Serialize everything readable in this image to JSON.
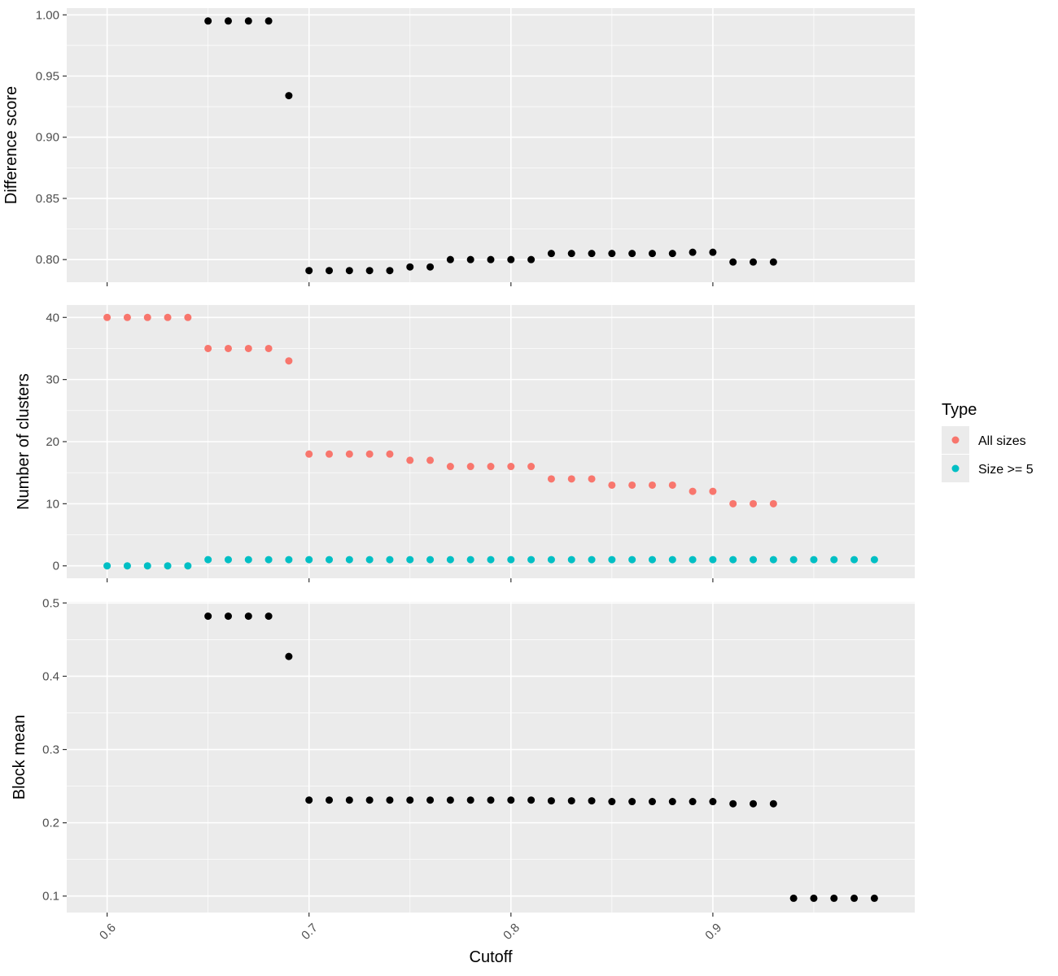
{
  "colors": {
    "panel_bg": "#EBEBEB",
    "grid": "#FFFFFF",
    "point_default": "#000000",
    "all_sizes": "#F8766D",
    "size_ge_5": "#00BFC4",
    "tick_text": "#4D4D4D",
    "tick_mark": "#333333"
  },
  "chart_data": {
    "type": "scatter",
    "xlabel": "Cutoff",
    "x_ticks": [
      "0.6",
      "0.7",
      "0.8",
      "0.9"
    ],
    "xlim": [
      0.58,
      1.0
    ],
    "legend": {
      "title": "Type",
      "position": "right",
      "entries": [
        "All sizes",
        "Size >= 5"
      ]
    },
    "panels": [
      {
        "ylabel": "Difference score",
        "ylim": [
          0.7815,
          1.0055
        ],
        "y_ticks": [
          "0.80",
          "0.85",
          "0.90",
          "0.95",
          "1.00"
        ],
        "y_tick_values": [
          0.8,
          0.85,
          0.9,
          0.95,
          1.0
        ],
        "series": [
          {
            "x": [
              0.65,
              0.66,
              0.67,
              0.68,
              0.69,
              0.7,
              0.71,
              0.72,
              0.73,
              0.74,
              0.75,
              0.76,
              0.77,
              0.78,
              0.79,
              0.8,
              0.81,
              0.82,
              0.83,
              0.84,
              0.85,
              0.86,
              0.87,
              0.88,
              0.89,
              0.9,
              0.91,
              0.92,
              0.93
            ],
            "y": [
              0.995,
              0.995,
              0.995,
              0.995,
              0.934,
              0.791,
              0.791,
              0.791,
              0.791,
              0.791,
              0.794,
              0.794,
              0.8,
              0.8,
              0.8,
              0.8,
              0.8,
              0.805,
              0.805,
              0.805,
              0.805,
              0.805,
              0.805,
              0.805,
              0.806,
              0.806,
              0.798,
              0.798,
              0.798
            ]
          }
        ]
      },
      {
        "ylabel": "Number of clusters",
        "ylim": [
          -2,
          42
        ],
        "y_ticks": [
          "0",
          "10",
          "20",
          "30",
          "40"
        ],
        "y_tick_values": [
          0,
          10,
          20,
          30,
          40
        ],
        "series": [
          {
            "name": "All sizes",
            "x": [
              0.6,
              0.61,
              0.62,
              0.63,
              0.64,
              0.65,
              0.66,
              0.67,
              0.68,
              0.69,
              0.7,
              0.71,
              0.72,
              0.73,
              0.74,
              0.75,
              0.76,
              0.77,
              0.78,
              0.79,
              0.8,
              0.81,
              0.82,
              0.83,
              0.84,
              0.85,
              0.86,
              0.87,
              0.88,
              0.89,
              0.9,
              0.91,
              0.92,
              0.93
            ],
            "y": [
              40,
              40,
              40,
              40,
              40,
              35,
              35,
              35,
              35,
              33,
              18,
              18,
              18,
              18,
              18,
              17,
              17,
              16,
              16,
              16,
              16,
              16,
              14,
              14,
              14,
              13,
              13,
              13,
              13,
              12,
              12,
              10,
              10,
              10
            ]
          },
          {
            "name": "Size >= 5",
            "x": [
              0.6,
              0.61,
              0.62,
              0.63,
              0.64,
              0.65,
              0.66,
              0.67,
              0.68,
              0.69,
              0.7,
              0.71,
              0.72,
              0.73,
              0.74,
              0.75,
              0.76,
              0.77,
              0.78,
              0.79,
              0.8,
              0.81,
              0.82,
              0.83,
              0.84,
              0.85,
              0.86,
              0.87,
              0.88,
              0.89,
              0.9,
              0.91,
              0.92,
              0.93,
              0.94,
              0.95,
              0.96,
              0.97,
              0.98
            ],
            "y": [
              0,
              0,
              0,
              0,
              0,
              1,
              1,
              1,
              1,
              1,
              1,
              1,
              1,
              1,
              1,
              1,
              1,
              1,
              1,
              1,
              1,
              1,
              1,
              1,
              1,
              1,
              1,
              1,
              1,
              1,
              1,
              1,
              1,
              1,
              1,
              1,
              1,
              1,
              1
            ]
          }
        ]
      },
      {
        "ylabel": "Block mean",
        "ylim": [
          0.0775,
          0.5015
        ],
        "y_ticks": [
          "0.1",
          "0.2",
          "0.3",
          "0.4",
          "0.5"
        ],
        "y_tick_values": [
          0.1,
          0.2,
          0.3,
          0.4,
          0.5
        ],
        "series": [
          {
            "x": [
              0.65,
              0.66,
              0.67,
              0.68,
              0.69,
              0.7,
              0.71,
              0.72,
              0.73,
              0.74,
              0.75,
              0.76,
              0.77,
              0.78,
              0.79,
              0.8,
              0.81,
              0.82,
              0.83,
              0.84,
              0.85,
              0.86,
              0.87,
              0.88,
              0.89,
              0.9,
              0.91,
              0.92,
              0.93,
              0.94,
              0.95,
              0.96,
              0.97,
              0.98
            ],
            "y": [
              0.482,
              0.482,
              0.482,
              0.482,
              0.427,
              0.231,
              0.231,
              0.231,
              0.231,
              0.231,
              0.231,
              0.231,
              0.231,
              0.231,
              0.231,
              0.231,
              0.231,
              0.23,
              0.23,
              0.23,
              0.229,
              0.229,
              0.229,
              0.229,
              0.229,
              0.229,
              0.226,
              0.226,
              0.226,
              0.097,
              0.097,
              0.097,
              0.097,
              0.097
            ]
          }
        ]
      }
    ]
  }
}
